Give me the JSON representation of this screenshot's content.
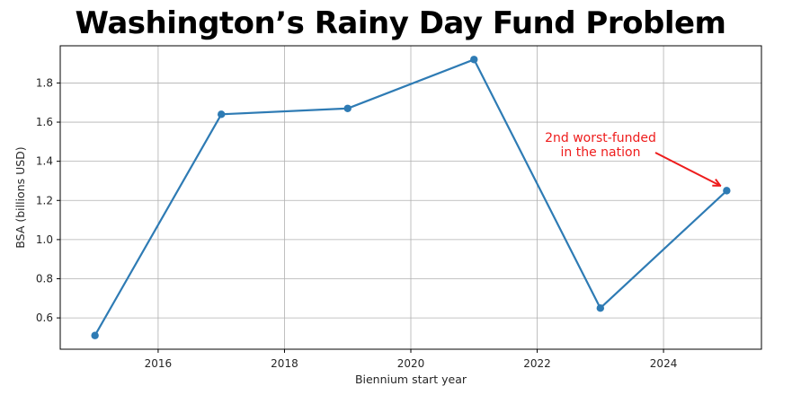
{
  "chart_data": {
    "type": "line",
    "title": "Washington’s Rainy Day Fund Problem",
    "xlabel": "Biennium start year",
    "ylabel": "BSA (billions USD)",
    "xlim": [
      2014.45,
      2025.55
    ],
    "ylim": [
      0.44,
      1.99
    ],
    "xticks": [
      2016,
      2018,
      2020,
      2022,
      2024
    ],
    "yticks": [
      0.6,
      0.8,
      1.0,
      1.2,
      1.4,
      1.6,
      1.8
    ],
    "grid": true,
    "series": [
      {
        "color": "#2e7bb4",
        "points": [
          {
            "x": 2015,
            "y": 0.51
          },
          {
            "x": 2017,
            "y": 1.64
          },
          {
            "x": 2019,
            "y": 1.67
          },
          {
            "x": 2021,
            "y": 1.92
          },
          {
            "x": 2023,
            "y": 0.65
          },
          {
            "x": 2025,
            "y": 1.25
          }
        ]
      }
    ],
    "annotation": {
      "lines": [
        "2nd worst-funded",
        "in the nation"
      ],
      "color": "#ee1c1c",
      "target": {
        "x": 2025,
        "y": 1.25
      }
    }
  }
}
